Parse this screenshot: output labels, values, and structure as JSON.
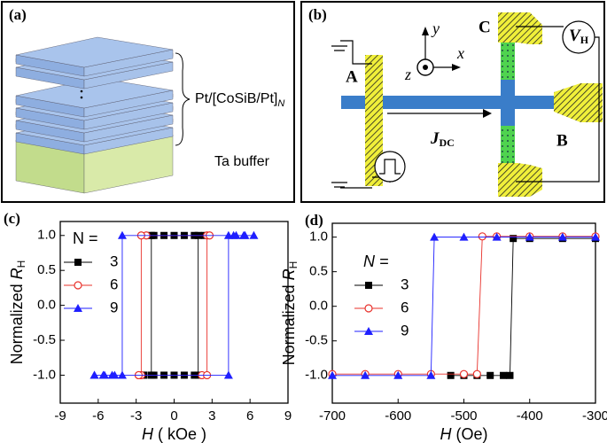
{
  "panels": {
    "a": {
      "label": "(a)",
      "stack_label": "Pt/[CoSiB/Pt]",
      "stack_subscript": "N",
      "buffer_label": "Ta buffer"
    },
    "b": {
      "label": "(b)",
      "contact_a": "A",
      "contact_b": "B",
      "contact_c": "C",
      "voltage_symbol": "V",
      "voltage_subscript": "H",
      "current_symbol": "J",
      "current_subscript": "DC",
      "axis_x": "x",
      "axis_y": "y",
      "axis_z": "z"
    }
  },
  "chart_data": [
    {
      "type": "line",
      "panel_label": "(c)",
      "ylabel": "Normalized ",
      "ylabel_symbol": "R",
      "ylabel_subscript": "H",
      "xlabel_symbol": "H",
      "xlabel_unit": " ( kOe )",
      "xlim": [
        -9,
        9
      ],
      "xticks": [
        -9,
        -6,
        -3,
        0,
        3,
        6,
        9
      ],
      "ylim": [
        -1.4,
        1.2
      ],
      "yticks": [
        {
          "value": -1,
          "label": "-1.0"
        },
        -0.5,
        {
          "value": 0,
          "label": "0.0"
        },
        0.5,
        {
          "value": 1,
          "label": "1.0"
        }
      ],
      "legend_title": "N =",
      "legend_title_style": "normal",
      "series": [
        {
          "name": "3",
          "color": "#000000",
          "marker": "square",
          "x": [
            -2.4,
            -1.6,
            -0.8,
            0,
            0.8,
            1.6,
            1.9,
            1.9,
            2.4,
            1.6,
            0.8,
            0,
            -0.8,
            -1.6,
            -1.8,
            -1.8,
            -2.4
          ],
          "values": [
            -1,
            -1,
            -1,
            -1,
            -1,
            -1,
            -1,
            1,
            1,
            1,
            1,
            1,
            1,
            1,
            1,
            -1,
            -1
          ]
        },
        {
          "name": "6",
          "color": "#e8302a",
          "marker": "circle",
          "x": [
            -2.8,
            2.2,
            2.6,
            2.6,
            2.8,
            -2.2,
            -2.6,
            -2.6,
            -2.8
          ],
          "values": [
            -1,
            -1,
            -1,
            1,
            1,
            1,
            1,
            -1,
            -1
          ]
        },
        {
          "name": "9",
          "color": "#1f1fff",
          "marker": "triangle",
          "x": [
            -6.3,
            -5.5,
            -4.7,
            4.3,
            4.3,
            4.9,
            5.6,
            6.3,
            5.5,
            4.7,
            -4.1,
            -4.1,
            -4.9,
            -5.6,
            -6.3
          ],
          "values": [
            -1,
            -1,
            -1,
            -1,
            1,
            1,
            1,
            1,
            1,
            1,
            1,
            -1,
            -1,
            -1,
            -1
          ]
        }
      ]
    },
    {
      "type": "line",
      "panel_label": "(d)",
      "ylabel": "Normalized ",
      "ylabel_symbol": "R",
      "ylabel_subscript": "H",
      "xlabel_symbol": "H",
      "xlabel_unit": " (Oe)",
      "xlim": [
        -700,
        -300
      ],
      "xticks": [
        -700,
        -600,
        -500,
        -400,
        -300
      ],
      "ylim": [
        -1.4,
        1.2
      ],
      "yticks": [
        {
          "value": -1,
          "label": "-1.0"
        },
        -0.5,
        {
          "value": 0,
          "label": "0.0"
        },
        0.5,
        {
          "value": 1,
          "label": "1.0"
        }
      ],
      "legend_title": "N =",
      "legend_title_style": "italic",
      "series": [
        {
          "name": "3",
          "color": "#000000",
          "marker": "square",
          "x": [
            -520,
            -500,
            -480,
            -460,
            -440,
            -430,
            -425,
            -400,
            -350,
            -300
          ],
          "values": [
            -1,
            -1,
            -1,
            -1,
            -1,
            -1,
            0.98,
            0.98,
            0.98,
            0.98
          ]
        },
        {
          "name": "6",
          "color": "#e8302a",
          "marker": "circle",
          "x": [
            -700,
            -650,
            -600,
            -550,
            -500,
            -480,
            -472,
            -450,
            -400,
            -350,
            -300
          ],
          "values": [
            -0.98,
            -0.98,
            -0.98,
            -0.98,
            -0.98,
            -0.98,
            1.01,
            1.01,
            1.01,
            1.01,
            1.01
          ]
        },
        {
          "name": "9",
          "color": "#1f1fff",
          "marker": "triangle",
          "x": [
            -700,
            -650,
            -600,
            -550,
            -545,
            -500,
            -450,
            -400,
            -350,
            -300
          ],
          "values": [
            -1,
            -1,
            -1,
            -1,
            1,
            1,
            1,
            1,
            1,
            1
          ]
        }
      ]
    }
  ]
}
